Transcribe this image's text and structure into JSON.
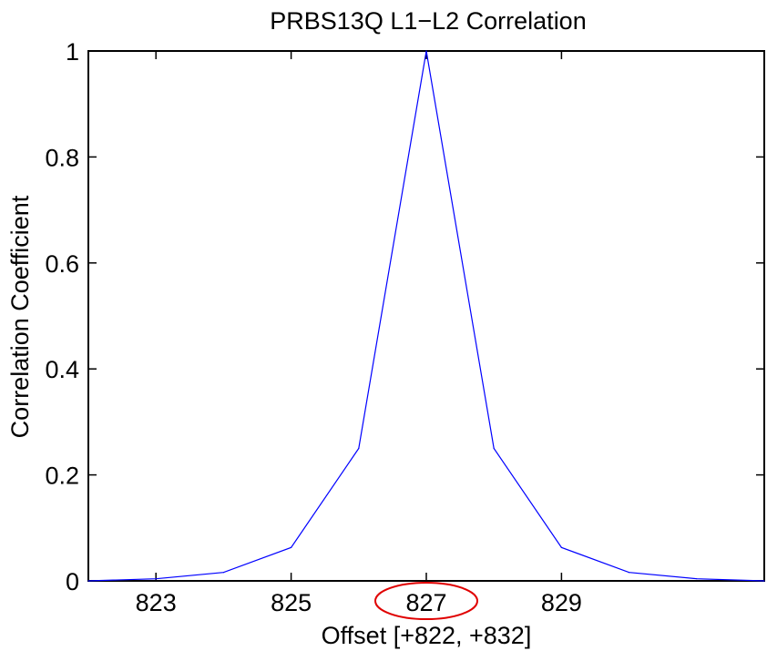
{
  "chart_data": {
    "type": "line",
    "title": "PRBS13Q L1−L2 Correlation",
    "xlabel": "Offset [+822, +832]",
    "ylabel": "Correlation Coefficient",
    "xlim": [
      822,
      832
    ],
    "ylim": [
      0,
      1
    ],
    "xticks": [
      823,
      825,
      827,
      829
    ],
    "yticks": [
      0,
      0.2,
      0.4,
      0.6,
      0.8,
      1
    ],
    "grid": false,
    "series": [
      {
        "color": "#0000ff",
        "x": [
          822,
          823,
          824,
          825,
          826,
          827,
          828,
          829,
          830,
          831,
          832
        ],
        "y": [
          0.0,
          0.004,
          0.016,
          0.063,
          0.25,
          1.0,
          0.25,
          0.063,
          0.016,
          0.004,
          0.0
        ]
      }
    ],
    "annotations": [
      {
        "type": "ellipse",
        "target_tick": 827,
        "color": "#e00000"
      }
    ]
  }
}
